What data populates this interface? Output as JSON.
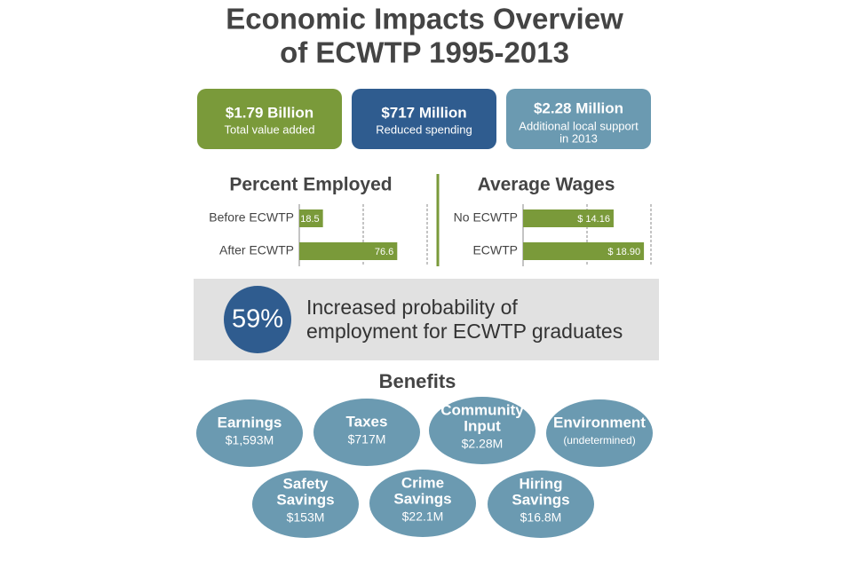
{
  "title": [
    "Economic Impacts Overview",
    "of ECWTP 1995-2013"
  ],
  "cards": [
    {
      "value": "$1.79 Billion",
      "label": [
        "Total value added"
      ],
      "color": "#7a9a3a"
    },
    {
      "value": "$717 Million",
      "label": [
        "Reduced spending"
      ],
      "color": "#2f5c8f"
    },
    {
      "value": "$2.28 Million",
      "label": [
        "Additional local support",
        "in 2013"
      ],
      "color": "#6b9ab1"
    }
  ],
  "chart_data": [
    {
      "type": "bar",
      "orientation": "horizontal",
      "title": "Percent Employed",
      "categories": [
        "Before ECWTP",
        "After ECWTP"
      ],
      "values": [
        18.5,
        76.6
      ],
      "color": "#7a9a3a",
      "xlim": [
        0,
        100
      ],
      "xticks": [
        50,
        100
      ],
      "grid": true
    },
    {
      "type": "bar",
      "orientation": "horizontal",
      "title": "Average Wages",
      "categories": [
        "No ECWTP",
        "ECWTP"
      ],
      "values": [
        14.16,
        18.9
      ],
      "value_labels": [
        "$ 14.16",
        "$ 18.90"
      ],
      "color": "#7a9a3a",
      "xlim": [
        0,
        20
      ],
      "xticks": [
        10,
        20
      ],
      "grid": true
    }
  ],
  "highlight": {
    "value": "59%",
    "text": [
      "Increased probability of",
      "employment for ECWTP graduates"
    ]
  },
  "benefits": {
    "title": "Benefits",
    "items": [
      {
        "name": [
          "Earnings"
        ],
        "value": "$1,593M"
      },
      {
        "name": [
          "Taxes"
        ],
        "value": "$717M"
      },
      {
        "name": [
          "Community",
          "Input"
        ],
        "value": "$2.28M"
      },
      {
        "name": [
          "Environment"
        ],
        "value": "(undetermined)"
      },
      {
        "name": [
          "Safety",
          "Savings"
        ],
        "value": "$153M"
      },
      {
        "name": [
          "Crime",
          "Savings"
        ],
        "value": "$22.1M"
      },
      {
        "name": [
          "Hiring",
          "Savings"
        ],
        "value": "$16.8M"
      }
    ]
  }
}
